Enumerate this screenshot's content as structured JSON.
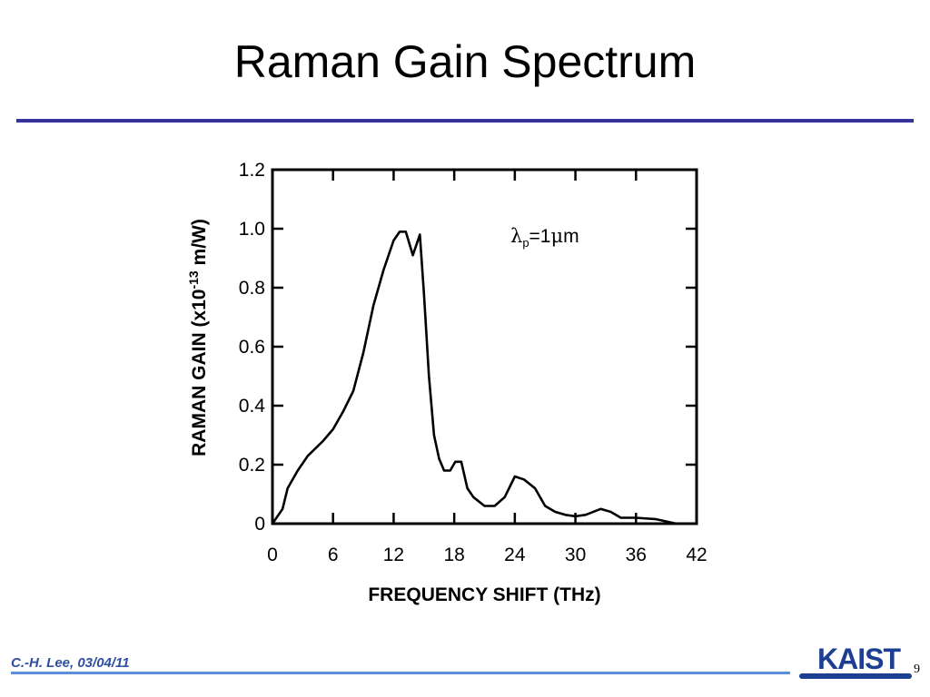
{
  "slide": {
    "title": "Raman Gain Spectrum",
    "footer_author": "C.-H. Lee, 03/04/11",
    "logo_text": "KAIST",
    "page_number": "9"
  },
  "colors": {
    "title_rule": "#333399",
    "footer_text": "#2e4fa0",
    "footer_rule": "#5b8fd9",
    "logo": "#1c3f93",
    "curve": "#000000"
  },
  "chart_data": {
    "type": "line",
    "title": "",
    "xlabel": "FREQUENCY SHIFT (THz)",
    "ylabel_parts": [
      "RAMAN GAIN (x10",
      "-13",
      " m/W)"
    ],
    "annotation_parts": [
      "λ",
      "p",
      "=1",
      "μ",
      "m"
    ],
    "xlim": [
      0,
      42
    ],
    "ylim": [
      0,
      1.2
    ],
    "xticks": [
      0,
      6,
      12,
      18,
      24,
      30,
      36,
      42
    ],
    "xtick_labels": [
      "0",
      "6",
      "12",
      "18",
      "24",
      "30",
      "36",
      "42"
    ],
    "yticks": [
      0,
      0.2,
      0.4,
      0.6,
      0.8,
      1.0,
      1.2
    ],
    "ytick_labels": [
      "0",
      "0.2",
      "0.4",
      "0.6",
      "0.8",
      "1.0",
      "1.2"
    ],
    "grid": false,
    "series": [
      {
        "x": [
          0,
          1,
          1.5,
          2.5,
          3.5,
          5,
          6,
          7,
          8,
          9,
          10,
          11,
          12,
          12.6,
          13.2,
          13.9,
          14.6,
          15,
          15.5,
          16,
          16.5,
          17,
          17.6,
          18.1,
          18.7,
          19.3,
          19.9,
          21,
          22,
          23,
          24,
          24.9,
          26,
          27,
          28,
          29,
          30,
          31,
          32.5,
          33.5,
          34.5,
          36,
          38,
          40
        ],
        "y": [
          0,
          0.05,
          0.12,
          0.18,
          0.23,
          0.28,
          0.32,
          0.38,
          0.45,
          0.58,
          0.74,
          0.86,
          0.96,
          0.99,
          0.99,
          0.91,
          0.98,
          0.78,
          0.5,
          0.3,
          0.22,
          0.18,
          0.18,
          0.21,
          0.21,
          0.12,
          0.09,
          0.06,
          0.06,
          0.09,
          0.16,
          0.15,
          0.12,
          0.06,
          0.04,
          0.03,
          0.025,
          0.03,
          0.05,
          0.04,
          0.02,
          0.02,
          0.015,
          0
        ]
      }
    ]
  }
}
